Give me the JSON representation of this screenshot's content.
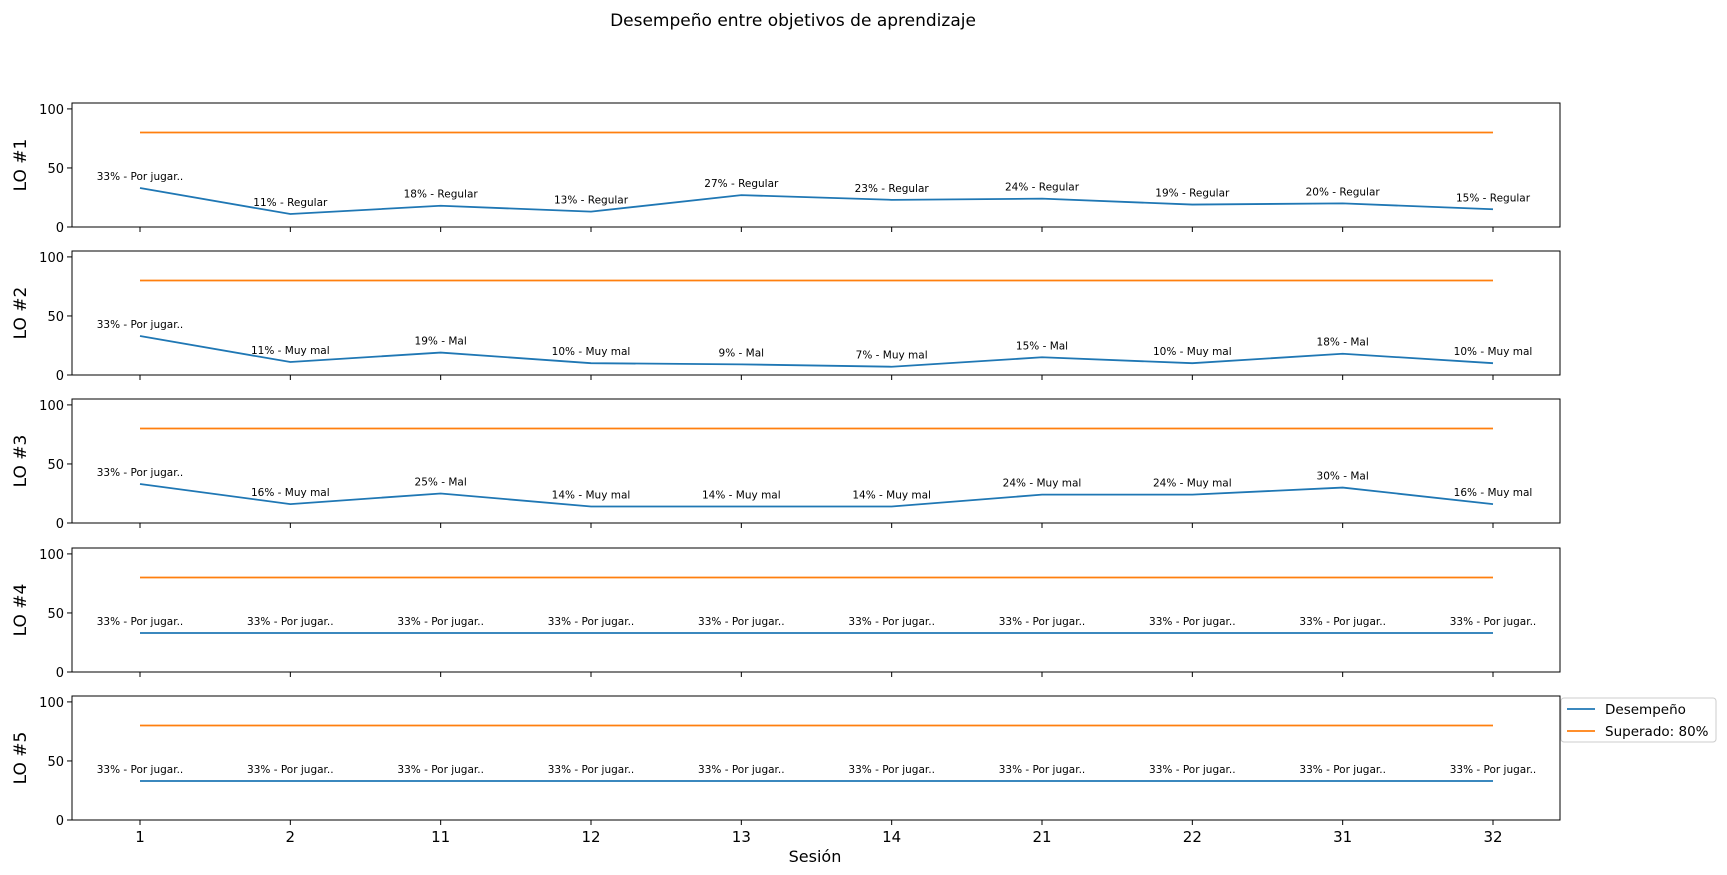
{
  "title": "Desempeño entre objetivos de aprendizaje",
  "chart_data": {
    "type": "line",
    "title": "Desempeño entre objetivos de aprendizaje",
    "xlabel": "Sesión",
    "categories": [
      "1",
      "2",
      "11",
      "12",
      "13",
      "14",
      "21",
      "22",
      "31",
      "32"
    ],
    "ylim": [
      0,
      105
    ],
    "yticks": [
      "0",
      "50",
      "100"
    ],
    "grid": false,
    "legend": {
      "placement": "right",
      "entries": [
        {
          "name": "Desempeño",
          "color": "#1f77b4"
        },
        {
          "name": "Superado: 80%",
          "color": "#ff7f0e"
        }
      ]
    },
    "threshold": 80,
    "panels": [
      {
        "ylabel": "LO #1",
        "values": [
          33,
          11,
          18,
          13,
          27,
          23,
          24,
          19,
          20,
          15
        ],
        "labels": [
          "33% - Por jugar..",
          "11% - Regular",
          "18% - Regular",
          "13% - Regular",
          "27% - Regular",
          "23% - Regular",
          "24% - Regular",
          "19% - Regular",
          "20% - Regular",
          "15% - Regular"
        ]
      },
      {
        "ylabel": "LO #2",
        "values": [
          33,
          11,
          19,
          10,
          9,
          7,
          15,
          10,
          18,
          10
        ],
        "labels": [
          "33% - Por jugar..",
          "11% - Muy mal",
          "19% - Mal",
          "10% - Muy mal",
          "9% - Mal",
          "7% - Muy mal",
          "15% - Mal",
          "10% - Muy mal",
          "18% - Mal",
          "10% - Muy mal"
        ]
      },
      {
        "ylabel": "LO #3",
        "values": [
          33,
          16,
          25,
          14,
          14,
          14,
          24,
          24,
          30,
          16
        ],
        "labels": [
          "33% - Por jugar..",
          "16% - Muy mal",
          "25% - Mal",
          "14% - Muy mal",
          "14% - Muy mal",
          "14% - Muy mal",
          "24% - Muy mal",
          "24% - Muy mal",
          "30% - Mal",
          "16% - Muy mal"
        ]
      },
      {
        "ylabel": "LO #4",
        "values": [
          33,
          33,
          33,
          33,
          33,
          33,
          33,
          33,
          33,
          33
        ],
        "labels": [
          "33% - Por jugar..",
          "33% - Por jugar..",
          "33% - Por jugar..",
          "33% - Por jugar..",
          "33% - Por jugar..",
          "33% - Por jugar..",
          "33% - Por jugar..",
          "33% - Por jugar..",
          "33% - Por jugar..",
          "33% - Por jugar.."
        ]
      },
      {
        "ylabel": "LO #5",
        "values": [
          33,
          33,
          33,
          33,
          33,
          33,
          33,
          33,
          33,
          33
        ],
        "labels": [
          "33% - Por jugar..",
          "33% - Por jugar..",
          "33% - Por jugar..",
          "33% - Por jugar..",
          "33% - Por jugar..",
          "33% - Por jugar..",
          "33% - Por jugar..",
          "33% - Por jugar..",
          "33% - Por jugar..",
          "33% - Por jugar.."
        ]
      }
    ]
  }
}
